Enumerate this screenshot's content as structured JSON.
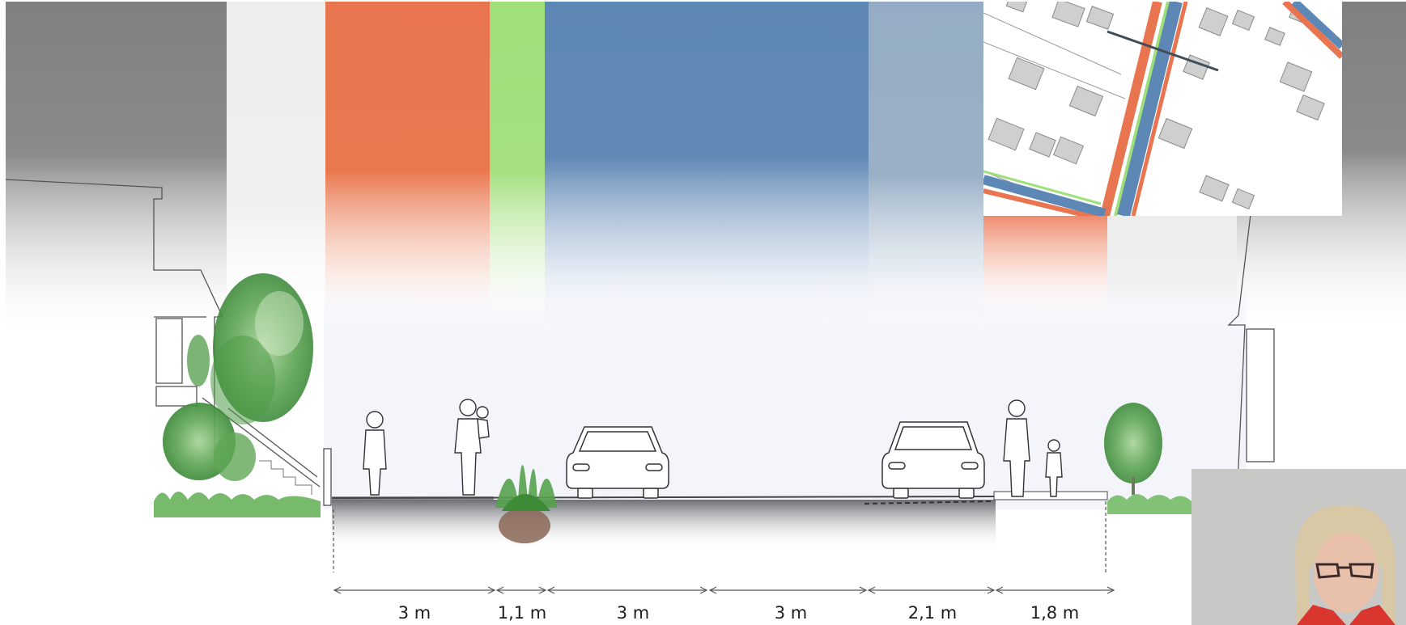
{
  "section": {
    "dimensions": [
      {
        "label": "3 m"
      },
      {
        "label": "1,1 m"
      },
      {
        "label": "3 m"
      },
      {
        "label": "3 m"
      },
      {
        "label": "2,1 m"
      },
      {
        "label": "1,8 m"
      }
    ]
  },
  "colors": {
    "pedestrian_gray": "#808080",
    "sidewalk_light": "#ececec",
    "bike_orange": "#e8754f",
    "green_strip": "#9fe07a",
    "road_blue": "#5d87b4",
    "parking_blue": "#95adc4",
    "bike_orange_right": "#ee8b6d"
  }
}
